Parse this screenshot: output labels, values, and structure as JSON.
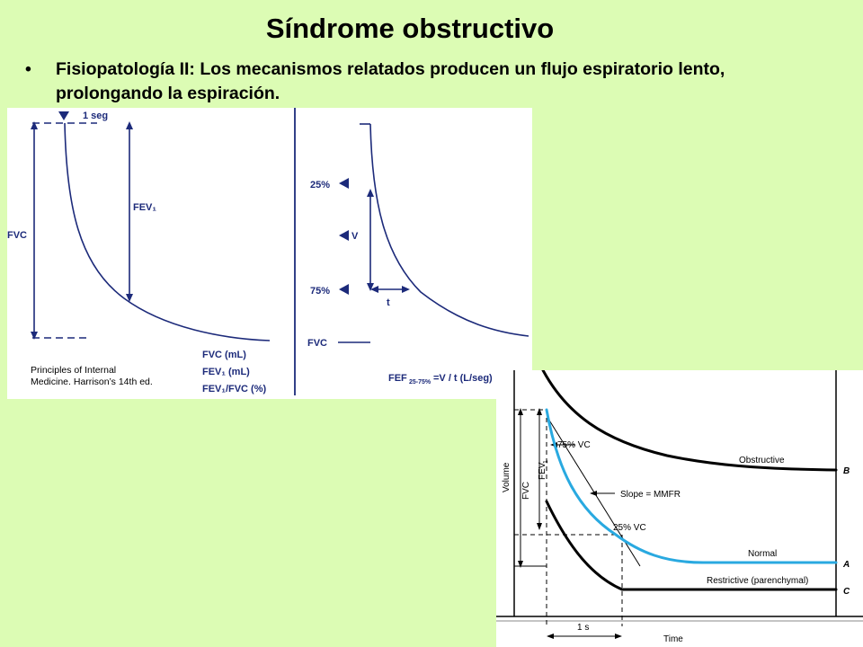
{
  "slide": {
    "title": "Síndrome obstructivo",
    "bullet_marker": "•",
    "bullet_text": "Fisiopatología II:  Los mecanismos relatados producen un flujo espiratorio lento, prolongando la espiración."
  },
  "figure_left": {
    "credit_line1": "Principles of Internal",
    "credit_line2": "Medicine. Harrison’s 14th ed.",
    "panel1": {
      "top_label": "1 seg",
      "fev1_label": "FEV₁",
      "fvc_label": "FVC",
      "legend": [
        "FVC (mL)",
        "FEV₁ (mL)",
        "FEV₁/FVC (%)"
      ]
    },
    "panel2": {
      "label_25": "25%",
      "label_v": "V",
      "label_75": "75%",
      "label_t": "t",
      "label_fvc": "FVC",
      "formula_prefix": "FEF",
      "formula_sub": "25-75%",
      "formula_suffix": "=V / t (L/seg)"
    }
  },
  "figure_right": {
    "y_axis_label": "Volume",
    "x_axis_label": "Time",
    "fvc_label": "FVC",
    "fev1_label": "FEV",
    "fev1_sub": "1",
    "label_75vc": "75% VC",
    "label_slope": "Slope = MMFR",
    "label_25vc": "25% VC",
    "label_1s": "1 s",
    "curve_obstructive": "Obstructive",
    "curve_normal": "Normal",
    "curve_restrictive": "Restrictive (parenchymal)",
    "letter_b": "B",
    "letter_a": "A",
    "letter_c": "C"
  },
  "colors": {
    "background": "#dcfcb4",
    "diagram_blue": "#1c2a7a",
    "normal_curve": "#29a9e0"
  }
}
